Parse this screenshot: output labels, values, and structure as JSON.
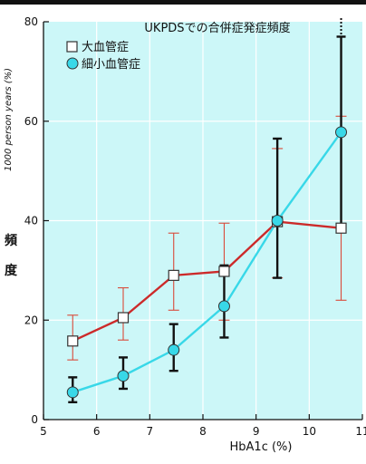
{
  "chart_data": {
    "type": "line",
    "title": "UKPDSでの合併症発症頻度",
    "xlabel": "HbA1c (%)",
    "ylabel_unit": "1000 person years (%)",
    "ylabel_chars": [
      "頻",
      "度"
    ],
    "xlim": [
      5,
      11
    ],
    "ylim": [
      0,
      80
    ],
    "x_ticks": [
      5,
      6,
      7,
      8,
      9,
      10,
      11
    ],
    "x_tick_labels": [
      "5",
      "6",
      "7",
      "8",
      "9",
      "10",
      "11"
    ],
    "y_ticks": [
      0,
      20,
      40,
      60,
      80
    ],
    "y_tick_labels": [
      "0",
      "20",
      "40",
      "60",
      "80"
    ],
    "grid": true,
    "legend_position": "top-left",
    "series": [
      {
        "name": "大血管症",
        "marker": "square",
        "line_color": "#cc2a2a",
        "error_color": "#d94a3a",
        "x": [
          5.55,
          6.5,
          7.45,
          8.4,
          9.4,
          10.6
        ],
        "y": [
          15.8,
          20.5,
          29.0,
          29.8,
          39.8,
          38.5
        ],
        "err_low": [
          12.0,
          16.0,
          22.0,
          20.0,
          28.5,
          24.0
        ],
        "err_high": [
          21.0,
          26.5,
          37.5,
          39.5,
          54.5,
          61.0
        ]
      },
      {
        "name": "細小血管症",
        "marker": "circle",
        "line_color": "#38d8e8",
        "error_color": "#111111",
        "x": [
          5.55,
          6.5,
          7.45,
          8.4,
          9.4,
          10.6
        ],
        "y": [
          5.5,
          8.8,
          14.0,
          22.8,
          40.0,
          57.8
        ],
        "err_low": [
          3.5,
          6.2,
          9.8,
          16.5,
          28.5,
          39.0
        ],
        "err_high": [
          8.5,
          12.5,
          19.2,
          31.0,
          56.5,
          77.0
        ],
        "err_extends_beyond": [
          false,
          false,
          false,
          false,
          false,
          true
        ]
      }
    ]
  },
  "colors": {
    "plot_background": "#ccf7f8",
    "grid": "#ffffff",
    "axis": "#111111",
    "top_rule": "#111111"
  }
}
